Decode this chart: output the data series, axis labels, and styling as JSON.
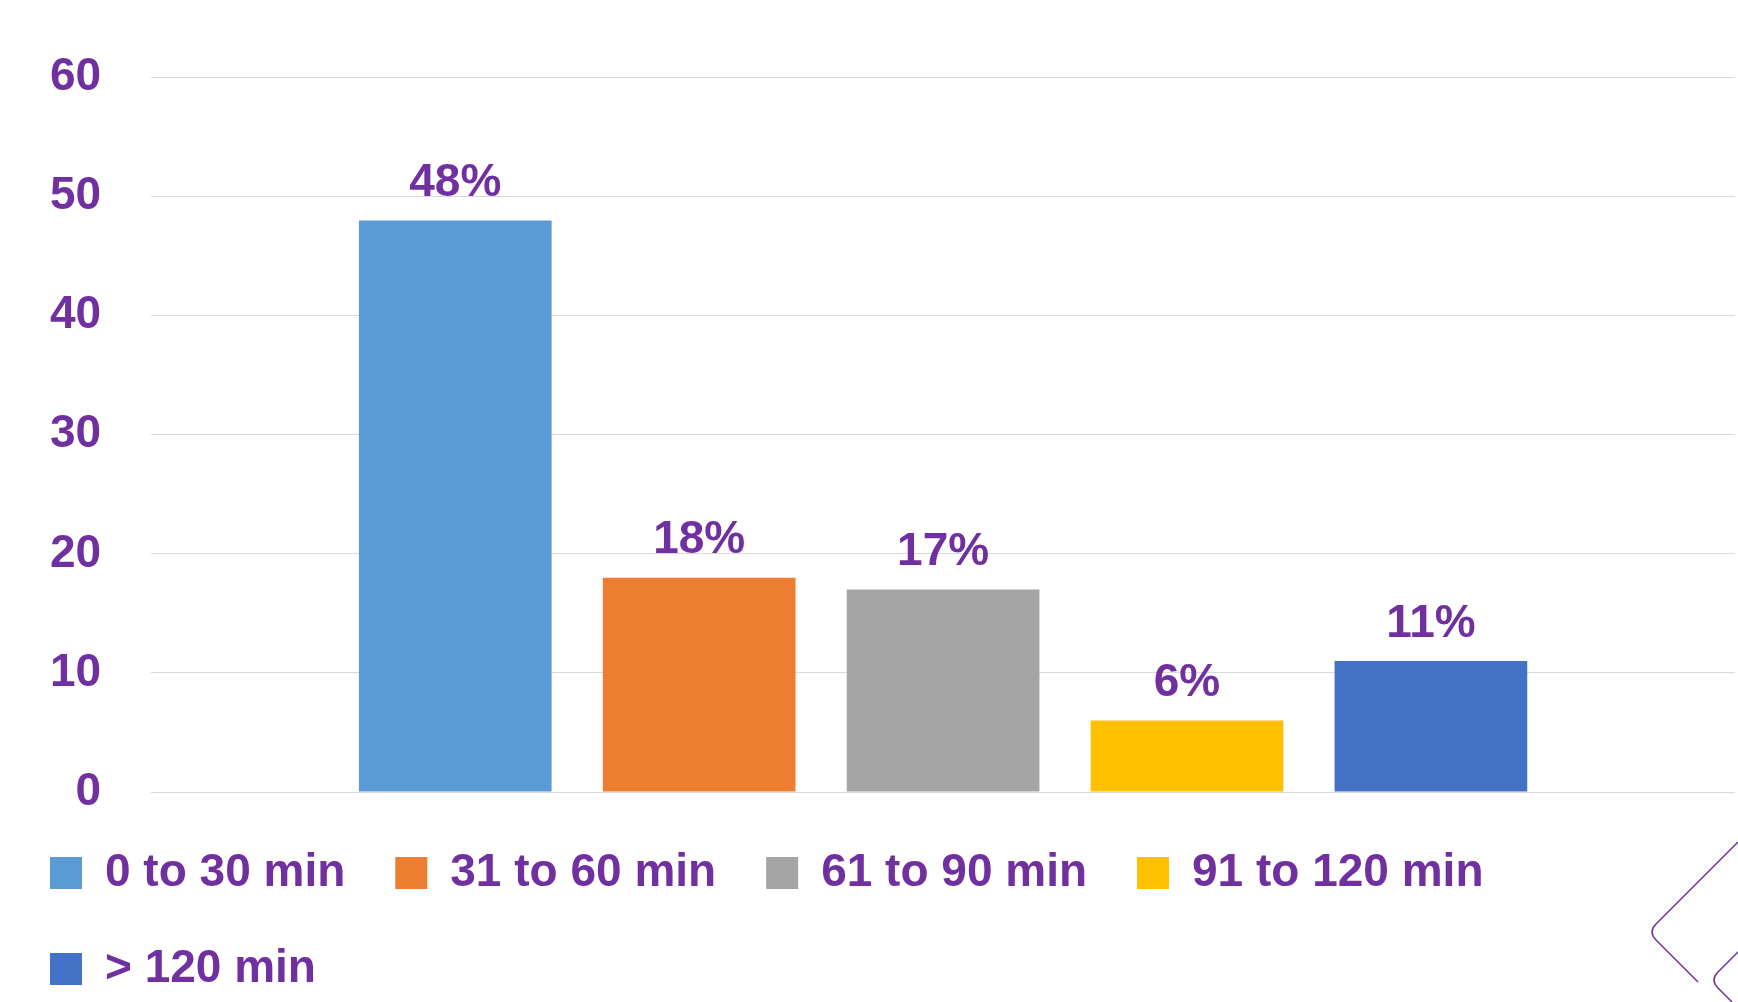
{
  "chart_data": {
    "type": "bar",
    "categories": [
      null
    ],
    "series": [
      {
        "name": "0 to 30 min",
        "color": "#5b9bd5",
        "values": [
          48
        ],
        "value_labels": [
          "48%"
        ]
      },
      {
        "name": "31 to 60 min",
        "color": "#ed7d31",
        "values": [
          18
        ],
        "value_labels": [
          "18%"
        ]
      },
      {
        "name": "61 to 90 min",
        "color": "#a5a5a5",
        "values": [
          17
        ],
        "value_labels": [
          "17%"
        ]
      },
      {
        "name": "91 to 120 min",
        "color": "#ffc000",
        "values": [
          6
        ],
        "value_labels": [
          "6%"
        ]
      },
      {
        "name": "> 120 min",
        "color": "#4472c4",
        "values": [
          11
        ],
        "value_labels": [
          "11%"
        ]
      }
    ],
    "ylim": [
      0,
      60
    ],
    "yticks": [
      0,
      10,
      20,
      30,
      40,
      50,
      60
    ],
    "grid": "y",
    "legend": "bottom",
    "tick_labels": "y"
  }
}
